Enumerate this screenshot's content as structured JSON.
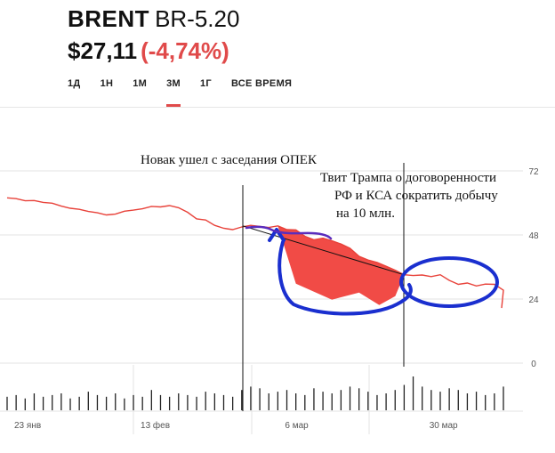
{
  "header": {
    "symbol": "BRENT",
    "code": "BR-5.20",
    "price": "$27,11",
    "change": "(-4,74%)"
  },
  "tabs": [
    {
      "label": "1Д",
      "active": false
    },
    {
      "label": "1Н",
      "active": false
    },
    {
      "label": "1М",
      "active": false
    },
    {
      "label": "3М",
      "active": true
    },
    {
      "label": "1Г",
      "active": false
    },
    {
      "label": "ВСЕ ВРЕМЯ",
      "active": false
    }
  ],
  "colors": {
    "line": "#e8423a",
    "fill": "#f14b46",
    "annotation": "#1a2fcf",
    "grid": "#e3e3e3"
  },
  "annotations": {
    "novak": "Новак ушел с заседания ОПЕК",
    "trump_lines": [
      "Твит Трампа о договоренности",
      "РФ и КСА сократить добычу",
      "на 10 млн."
    ]
  },
  "chart_data": {
    "type": "line",
    "title": "",
    "xlabel": "",
    "ylabel": "",
    "ylim": [
      0,
      72
    ],
    "yticks": [
      0,
      24,
      48,
      72
    ],
    "xticks": [
      {
        "label": "23 янв",
        "i": 0
      },
      {
        "label": "13 фев",
        "i": 14
      },
      {
        "label": "6 мар",
        "i": 30
      },
      {
        "label": "30 мар",
        "i": 46
      }
    ],
    "series": [
      {
        "values": [
          61.9,
          61.6,
          60.8,
          60.9,
          60.2,
          59.9,
          58.8,
          58.0,
          57.6,
          56.8,
          56.3,
          55.5,
          55.8,
          56.9,
          57.3,
          57.8,
          58.7,
          58.5,
          59.0,
          58.2,
          56.5,
          54.0,
          53.6,
          51.6,
          50.5,
          50.0,
          51.0,
          51.6,
          51.2,
          50.8,
          51.4,
          50.0,
          49.9,
          47.5,
          46.2,
          46.8,
          45.8,
          44.6,
          43.0,
          40.0,
          38.6,
          37.7,
          36.3,
          34.8,
          33.1,
          32.8,
          33.0,
          32.4,
          33.1,
          31.0,
          29.5,
          30.0,
          28.9,
          29.6,
          29.5,
          27.3
        ]
      }
    ],
    "volume": [
      8,
      9,
      7,
      10,
      8,
      9,
      10,
      7,
      8,
      11,
      9,
      8,
      10,
      7,
      9,
      8,
      12,
      9,
      8,
      10,
      9,
      8,
      11,
      10,
      9,
      8,
      12,
      14,
      13,
      10,
      11,
      12,
      10,
      9,
      13,
      11,
      10,
      12,
      14,
      13,
      11,
      9,
      10,
      12,
      15,
      20,
      14,
      12,
      11,
      13,
      12,
      10,
      11,
      9,
      10,
      14
    ]
  }
}
